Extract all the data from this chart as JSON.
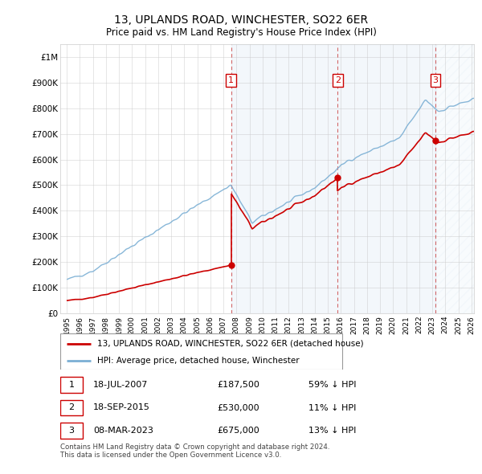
{
  "title": "13, UPLANDS ROAD, WINCHESTER, SO22 6ER",
  "subtitle": "Price paid vs. HM Land Registry's House Price Index (HPI)",
  "hpi_label": "HPI: Average price, detached house, Winchester",
  "property_label": "13, UPLANDS ROAD, WINCHESTER, SO22 6ER (detached house)",
  "hpi_color": "#7bafd4",
  "property_color": "#cc0000",
  "sale_color": "#cc0000",
  "vline_color": "#cc4444",
  "shade_color": "#ddeeff",
  "ylim": [
    0,
    1050000
  ],
  "yticks": [
    0,
    100000,
    200000,
    300000,
    400000,
    500000,
    600000,
    700000,
    800000,
    900000,
    1000000
  ],
  "ytick_labels": [
    "£0",
    "£100K",
    "£200K",
    "£300K",
    "£400K",
    "£500K",
    "£600K",
    "£700K",
    "£800K",
    "£900K",
    "£1M"
  ],
  "xlim_min": 1994.5,
  "xlim_max": 2026.2,
  "sale_annotations": [
    {
      "label": "1",
      "date": "18-JUL-2007",
      "price": "£187,500",
      "pct": "59% ↓ HPI"
    },
    {
      "label": "2",
      "date": "18-SEP-2015",
      "price": "£530,000",
      "pct": "11% ↓ HPI"
    },
    {
      "label": "3",
      "date": "08-MAR-2023",
      "price": "£675,000",
      "pct": "13% ↓ HPI"
    }
  ],
  "footer": "Contains HM Land Registry data © Crown copyright and database right 2024.\nThis data is licensed under the Open Government Licence v3.0.",
  "background_color": "#ffffff",
  "grid_color": "#cccccc",
  "chart_bg": "#ffffff"
}
